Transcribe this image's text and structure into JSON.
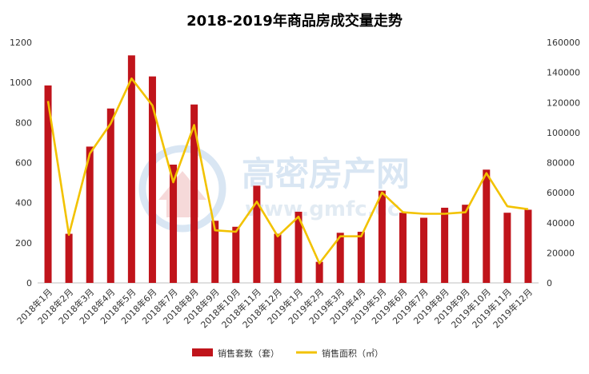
{
  "chart_data": {
    "type": "bar",
    "title": "2018-2019年商品房成交量走势",
    "categories": [
      "2018年1月",
      "2018年2月",
      "2018年3月",
      "2018年4月",
      "2018年5月",
      "2018年6月",
      "2018年7月",
      "2018年8月",
      "2018年9月",
      "2018年10月",
      "2018年11月",
      "2018年12月",
      "2019年1月",
      "2019年2月",
      "2019年3月",
      "2019年4月",
      "2019年5月",
      "2019年6月",
      "2019年7月",
      "2019年8月",
      "2019年9月",
      "2019年10月",
      "2019年11月",
      "2019年12月"
    ],
    "series": [
      {
        "name": "销售套数（套）",
        "type": "bar",
        "axis": "left",
        "color": "#c0141b",
        "values": [
          985,
          245,
          680,
          870,
          1135,
          1030,
          590,
          890,
          310,
          280,
          485,
          245,
          355,
          105,
          250,
          255,
          460,
          350,
          325,
          375,
          390,
          565,
          350,
          365
        ]
      },
      {
        "name": "销售面积（㎡）",
        "type": "line",
        "axis": "right",
        "color": "#f2c200",
        "values": [
          121000,
          32000,
          86000,
          106000,
          136000,
          118000,
          67000,
          105000,
          35000,
          34000,
          54000,
          31000,
          44000,
          13000,
          31000,
          31000,
          60000,
          47000,
          46000,
          46000,
          47000,
          73000,
          51000,
          49000
        ]
      }
    ],
    "y_left": {
      "min": 0,
      "max": 1200,
      "ticks": [
        0,
        200,
        400,
        600,
        800,
        1000,
        1200
      ]
    },
    "y_right": {
      "min": 0,
      "max": 160000,
      "ticks": [
        0,
        20000,
        40000,
        60000,
        80000,
        100000,
        120000,
        140000,
        160000
      ]
    },
    "grid": false,
    "legend_position": "bottom",
    "watermark": {
      "text_cn": "高密房产网",
      "text_en": "www.gmfc.cc"
    }
  }
}
